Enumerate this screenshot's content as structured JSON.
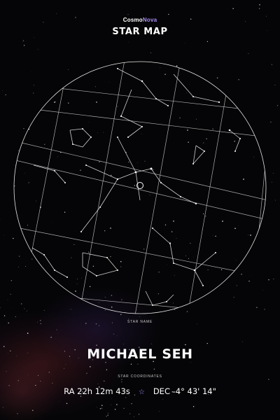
{
  "brand": {
    "part1": "Cosmo",
    "part2": "Nova"
  },
  "title": "STAR MAP",
  "star_name_label": "STAR NAME",
  "star_name": "MICHAEL SEH",
  "coordinates_label": "STAR COORDINATES",
  "ra": "RA 22h 12m 43s",
  "separator_icon": "☆",
  "dec": "DEC -4° 43' 14\"",
  "colors": {
    "background": "#050507",
    "accent": "#a98cf5",
    "lines": "#e6e6e6"
  }
}
